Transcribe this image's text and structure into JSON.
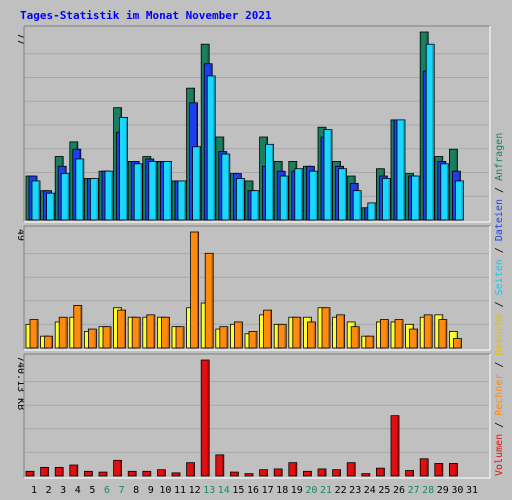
{
  "title": "Tages-Statistik im Monat November 2021",
  "colors": {
    "background": "#c0c0c0",
    "panel": "#c0c0c0",
    "anfragen": "#1b7f5f",
    "dateien": "#1e3ff0",
    "seiten": "#19d7ff",
    "besuche": "#ffff30",
    "rechner": "#ff8a10",
    "volumen": "#e01010",
    "weekday_label": "#000000",
    "weekend_label": "#1a8a5a"
  },
  "side_legend": [
    {
      "text": "Volumen",
      "color": "#e01010"
    },
    {
      "text": " / ",
      "color": "#000000"
    },
    {
      "text": "Rechner",
      "color": "#ff8a10"
    },
    {
      "text": " / ",
      "color": "#000000"
    },
    {
      "text": "Besuche",
      "color": "#e8c000"
    },
    {
      "text": " / ",
      "color": "#000000"
    },
    {
      "text": "Seiten",
      "color": "#19c7ef"
    },
    {
      "text": " / ",
      "color": "#000000"
    },
    {
      "text": "Dateien",
      "color": "#1e3ff0"
    },
    {
      "text": " / ",
      "color": "#000000"
    },
    {
      "text": "Anfragen",
      "color": "#1b7f5f"
    }
  ],
  "chart_data": {
    "type": "bar",
    "title": "Tages-Statistik im Monat November 2021",
    "x": [
      "1",
      "2",
      "3",
      "4",
      "5",
      "6",
      "7",
      "8",
      "9",
      "10",
      "11",
      "12",
      "13",
      "14",
      "15",
      "16",
      "17",
      "18",
      "19",
      "20",
      "21",
      "22",
      "23",
      "24",
      "25",
      "26",
      "27",
      "28",
      "29",
      "30",
      "31"
    ],
    "weekend_days": [
      6,
      7,
      13,
      14,
      20,
      21,
      27,
      28
    ],
    "panels": [
      {
        "name": "top",
        "ylabel": "77",
        "ymax": 77,
        "series": [
          {
            "name": "Anfragen",
            "values": [
              18,
              12,
              26,
              32,
              17,
              20,
              46,
              24,
              26,
              24,
              16,
              54,
              72,
              34,
              19,
              16,
              34,
              24,
              24,
              22,
              38,
              24,
              18,
              5,
              21,
              41,
              19,
              77,
              26,
              29,
              0
            ]
          },
          {
            "name": "Dateien",
            "values": [
              18,
              12,
              22,
              29,
              17,
              20,
              36,
              24,
              25,
              24,
              16,
              48,
              64,
              28,
              19,
              12,
              22,
              20,
              20,
              22,
              34,
              22,
              15,
              5,
              18,
              41,
              18,
              61,
              24,
              20,
              0
            ]
          },
          {
            "name": "Seiten",
            "values": [
              16,
              11,
              19,
              25,
              17,
              20,
              42,
              23,
              24,
              24,
              16,
              30,
              59,
              27,
              17,
              12,
              31,
              18,
              21,
              20,
              37,
              21,
              12,
              7,
              17,
              41,
              18,
              72,
              23,
              16,
              0
            ]
          }
        ]
      },
      {
        "name": "middle",
        "ylabel": "49",
        "ymax": 49,
        "series": [
          {
            "name": "Besuche",
            "values": [
              10,
              5,
              11,
              13,
              7,
              9,
              17,
              13,
              13,
              13,
              9,
              17,
              19,
              8,
              10,
              6,
              14,
              10,
              13,
              13,
              17,
              13,
              11,
              5,
              11,
              11,
              10,
              13,
              14,
              7,
              0
            ]
          },
          {
            "name": "Rechner",
            "values": [
              12,
              5,
              13,
              18,
              8,
              9,
              16,
              13,
              14,
              13,
              9,
              49,
              40,
              9,
              11,
              7,
              16,
              10,
              13,
              11,
              17,
              14,
              9,
              5,
              12,
              12,
              8,
              14,
              12,
              4,
              0
            ]
          }
        ]
      },
      {
        "name": "bottom",
        "ylabel": "740.13 KB",
        "ymax": 740.13,
        "series": [
          {
            "name": "Volumen",
            "values": [
              30,
              55,
              55,
              70,
              30,
              25,
              100,
              30,
              30,
              40,
              20,
              85,
              740,
              135,
              25,
              15,
              40,
              45,
              85,
              30,
              45,
              40,
              85,
              15,
              50,
              385,
              35,
              110,
              80,
              80,
              0
            ]
          }
        ]
      }
    ]
  }
}
